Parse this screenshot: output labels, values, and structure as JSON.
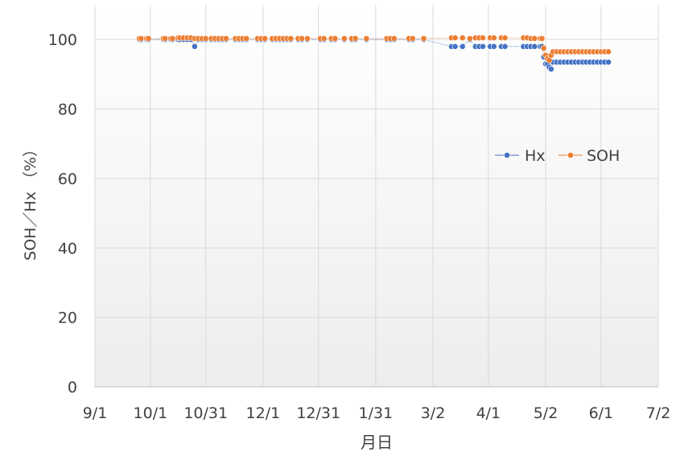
{
  "chart_data": {
    "type": "scatter",
    "title": "",
    "xlabel": "月日",
    "ylabel": "SOH／Hx （%）",
    "x_ticks": [
      "9/1",
      "10/1",
      "10/31",
      "12/1",
      "12/31",
      "1/31",
      "3/2",
      "4/1",
      "5/2",
      "6/1",
      "7/2"
    ],
    "x_range": [
      "2023-09-01",
      "2024-07-02"
    ],
    "y_ticks": [
      "0",
      "20",
      "40",
      "60",
      "80",
      "100"
    ],
    "ylim": [
      0,
      110
    ],
    "grid": true,
    "legend_position": "right-middle",
    "colors": {
      "Hx": "#4472c4",
      "SOH": "#ed7d31"
    },
    "series": [
      {
        "name": "Hx",
        "points": [
          [
            "2023-09-25",
            100
          ],
          [
            "2023-09-26",
            100
          ],
          [
            "2023-09-29",
            100
          ],
          [
            "2023-09-30",
            100
          ],
          [
            "2023-10-08",
            100
          ],
          [
            "2023-10-09",
            100
          ],
          [
            "2023-10-12",
            100
          ],
          [
            "2023-10-13",
            100
          ],
          [
            "2023-10-16",
            100
          ],
          [
            "2023-10-17",
            100
          ],
          [
            "2023-10-19",
            100
          ],
          [
            "2023-10-21",
            100
          ],
          [
            "2023-10-23",
            100
          ],
          [
            "2023-10-25",
            98
          ],
          [
            "2023-10-27",
            100
          ],
          [
            "2023-10-29",
            100
          ],
          [
            "2023-10-31",
            100
          ],
          [
            "2023-11-03",
            100
          ],
          [
            "2023-11-05",
            100
          ],
          [
            "2023-11-07",
            100
          ],
          [
            "2023-11-09",
            100
          ],
          [
            "2023-11-11",
            100
          ],
          [
            "2023-11-16",
            100
          ],
          [
            "2023-11-18",
            100
          ],
          [
            "2023-11-20",
            100
          ],
          [
            "2023-11-22",
            100
          ],
          [
            "2023-11-28",
            100
          ],
          [
            "2023-11-30",
            100
          ],
          [
            "2023-12-02",
            100
          ],
          [
            "2023-12-06",
            100
          ],
          [
            "2023-12-08",
            100
          ],
          [
            "2023-12-10",
            100
          ],
          [
            "2023-12-12",
            100
          ],
          [
            "2023-12-14",
            100
          ],
          [
            "2023-12-16",
            100
          ],
          [
            "2023-12-20",
            100
          ],
          [
            "2023-12-22",
            100
          ],
          [
            "2023-12-25",
            100
          ],
          [
            "2024-01-01",
            100
          ],
          [
            "2024-01-03",
            100
          ],
          [
            "2024-01-07",
            100
          ],
          [
            "2024-01-09",
            100
          ],
          [
            "2024-01-14",
            100
          ],
          [
            "2024-01-18",
            100
          ],
          [
            "2024-01-20",
            100
          ],
          [
            "2024-01-26",
            100
          ],
          [
            "2024-02-06",
            100
          ],
          [
            "2024-02-08",
            100
          ],
          [
            "2024-02-10",
            100
          ],
          [
            "2024-02-18",
            100
          ],
          [
            "2024-02-20",
            100
          ],
          [
            "2024-02-26",
            100
          ],
          [
            "2024-03-12",
            98
          ],
          [
            "2024-03-14",
            98
          ],
          [
            "2024-03-18",
            98
          ],
          [
            "2024-03-22",
            100
          ],
          [
            "2024-03-25",
            98
          ],
          [
            "2024-03-27",
            98
          ],
          [
            "2024-03-29",
            98
          ],
          [
            "2024-04-02",
            98
          ],
          [
            "2024-04-04",
            98
          ],
          [
            "2024-04-08",
            98
          ],
          [
            "2024-04-10",
            98
          ],
          [
            "2024-04-20",
            98
          ],
          [
            "2024-04-22",
            98
          ],
          [
            "2024-04-24",
            98
          ],
          [
            "2024-04-26",
            98
          ],
          [
            "2024-04-29",
            98
          ],
          [
            "2024-04-30",
            98
          ],
          [
            "2024-05-01",
            95
          ],
          [
            "2024-05-02",
            93
          ],
          [
            "2024-05-03",
            93
          ],
          [
            "2024-05-04",
            92
          ],
          [
            "2024-05-05",
            91.5
          ],
          [
            "2024-05-06",
            93.5
          ],
          [
            "2024-05-08",
            93.5
          ],
          [
            "2024-05-10",
            93.5
          ],
          [
            "2024-05-12",
            93.5
          ],
          [
            "2024-05-14",
            93.5
          ],
          [
            "2024-05-16",
            93.5
          ],
          [
            "2024-05-18",
            93.5
          ],
          [
            "2024-05-20",
            93.5
          ],
          [
            "2024-05-22",
            93.5
          ],
          [
            "2024-05-24",
            93.5
          ],
          [
            "2024-05-26",
            93.5
          ],
          [
            "2024-05-28",
            93.5
          ],
          [
            "2024-05-30",
            93.5
          ],
          [
            "2024-06-01",
            93.5
          ],
          [
            "2024-06-03",
            93.5
          ],
          [
            "2024-06-05",
            93.5
          ]
        ]
      },
      {
        "name": "SOH",
        "points": [
          [
            "2023-09-25",
            100.3
          ],
          [
            "2023-09-26",
            100.3
          ],
          [
            "2023-09-29",
            100.3
          ],
          [
            "2023-09-30",
            100.3
          ],
          [
            "2023-10-08",
            100.3
          ],
          [
            "2023-10-09",
            100.3
          ],
          [
            "2023-10-12",
            100.3
          ],
          [
            "2023-10-13",
            100.3
          ],
          [
            "2023-10-16",
            100.5
          ],
          [
            "2023-10-17",
            100.5
          ],
          [
            "2023-10-19",
            100.5
          ],
          [
            "2023-10-21",
            100.5
          ],
          [
            "2023-10-23",
            100.5
          ],
          [
            "2023-10-25",
            100.3
          ],
          [
            "2023-10-27",
            100.3
          ],
          [
            "2023-10-29",
            100.3
          ],
          [
            "2023-10-31",
            100.3
          ],
          [
            "2023-11-03",
            100.3
          ],
          [
            "2023-11-05",
            100.3
          ],
          [
            "2023-11-07",
            100.3
          ],
          [
            "2023-11-09",
            100.3
          ],
          [
            "2023-11-11",
            100.3
          ],
          [
            "2023-11-16",
            100.3
          ],
          [
            "2023-11-18",
            100.3
          ],
          [
            "2023-11-20",
            100.3
          ],
          [
            "2023-11-22",
            100.3
          ],
          [
            "2023-11-28",
            100.3
          ],
          [
            "2023-11-30",
            100.3
          ],
          [
            "2023-12-02",
            100.3
          ],
          [
            "2023-12-06",
            100.3
          ],
          [
            "2023-12-08",
            100.3
          ],
          [
            "2023-12-10",
            100.3
          ],
          [
            "2023-12-12",
            100.3
          ],
          [
            "2023-12-14",
            100.3
          ],
          [
            "2023-12-16",
            100.3
          ],
          [
            "2023-12-20",
            100.3
          ],
          [
            "2023-12-22",
            100.3
          ],
          [
            "2023-12-25",
            100.3
          ],
          [
            "2024-01-01",
            100.3
          ],
          [
            "2024-01-03",
            100.3
          ],
          [
            "2024-01-07",
            100.3
          ],
          [
            "2024-01-09",
            100.3
          ],
          [
            "2024-01-14",
            100.3
          ],
          [
            "2024-01-18",
            100.3
          ],
          [
            "2024-01-20",
            100.3
          ],
          [
            "2024-01-26",
            100.3
          ],
          [
            "2024-02-06",
            100.3
          ],
          [
            "2024-02-08",
            100.3
          ],
          [
            "2024-02-10",
            100.3
          ],
          [
            "2024-02-18",
            100.3
          ],
          [
            "2024-02-20",
            100.3
          ],
          [
            "2024-02-26",
            100.3
          ],
          [
            "2024-03-12",
            100.5
          ],
          [
            "2024-03-14",
            100.5
          ],
          [
            "2024-03-18",
            100.5
          ],
          [
            "2024-03-22",
            100.3
          ],
          [
            "2024-03-25",
            100.5
          ],
          [
            "2024-03-27",
            100.5
          ],
          [
            "2024-03-29",
            100.5
          ],
          [
            "2024-04-02",
            100.5
          ],
          [
            "2024-04-04",
            100.5
          ],
          [
            "2024-04-08",
            100.5
          ],
          [
            "2024-04-10",
            100.5
          ],
          [
            "2024-04-20",
            100.5
          ],
          [
            "2024-04-22",
            100.5
          ],
          [
            "2024-04-24",
            100.3
          ],
          [
            "2024-04-26",
            100.3
          ],
          [
            "2024-04-29",
            100.3
          ],
          [
            "2024-04-30",
            100.3
          ],
          [
            "2024-05-01",
            97.5
          ],
          [
            "2024-05-02",
            95.5
          ],
          [
            "2024-05-03",
            94.5
          ],
          [
            "2024-05-04",
            94
          ],
          [
            "2024-05-05",
            95.5
          ],
          [
            "2024-05-06",
            96.5
          ],
          [
            "2024-05-08",
            96.5
          ],
          [
            "2024-05-10",
            96.5
          ],
          [
            "2024-05-12",
            96.5
          ],
          [
            "2024-05-14",
            96.5
          ],
          [
            "2024-05-16",
            96.5
          ],
          [
            "2024-05-18",
            96.5
          ],
          [
            "2024-05-20",
            96.5
          ],
          [
            "2024-05-22",
            96.5
          ],
          [
            "2024-05-24",
            96.5
          ],
          [
            "2024-05-26",
            96.5
          ],
          [
            "2024-05-28",
            96.5
          ],
          [
            "2024-05-30",
            96.5
          ],
          [
            "2024-06-01",
            96.5
          ],
          [
            "2024-06-03",
            96.5
          ],
          [
            "2024-06-05",
            96.5
          ]
        ]
      }
    ]
  }
}
